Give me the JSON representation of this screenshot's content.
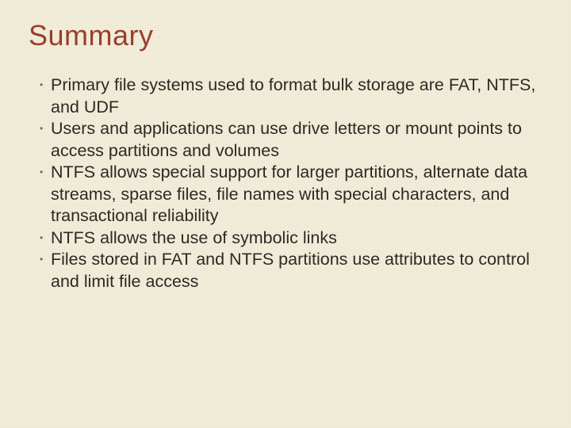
{
  "slide": {
    "title": "Summary",
    "title_color": "#9a3d2e",
    "title_fontsize": 36,
    "body_fontsize": 21.5,
    "body_color": "#2a2a24",
    "bullet_color": "#6b6a5c",
    "background_color": "#f2eed9",
    "bullets": [
      "Primary file systems used to format bulk storage are FAT, NTFS, and UDF",
      "Users and applications can use drive letters or mount points to access partitions and volumes",
      "NTFS allows special support for larger partitions, alternate data streams, sparse files, file names with special characters, and transactional reliability",
      "NTFS allows the use of symbolic links",
      "Files stored in FAT and NTFS partitions use attributes to control and limit file access"
    ]
  }
}
